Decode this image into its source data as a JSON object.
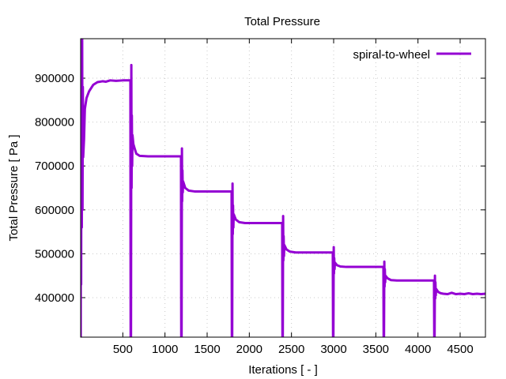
{
  "chart_data": {
    "type": "line",
    "title": "Total Pressure",
    "xlabel": "Iterations [ - ]",
    "ylabel": "Total Pressure [ Pa ]",
    "xlim": [
      0,
      4800
    ],
    "ylim": [
      310000,
      990000
    ],
    "xticks": [
      500,
      1000,
      1500,
      2000,
      2500,
      3000,
      3500,
      4000,
      4500
    ],
    "xtick_labels": [
      "500",
      "1000",
      "1500",
      "2000",
      "2500",
      "3000",
      "3500",
      "4000",
      "4500"
    ],
    "yticks": [
      400000,
      500000,
      600000,
      700000,
      800000,
      900000
    ],
    "ytick_labels": [
      "400000",
      "500000",
      "600000",
      "700000",
      "800000",
      "900000"
    ],
    "grid": true,
    "legend_position": "top-right",
    "series": [
      {
        "name": "spiral-to-wheel",
        "color": "#9400d3",
        "points": [
          [
            1,
            310000
          ],
          [
            3,
            990000
          ],
          [
            6,
            430000
          ],
          [
            10,
            990000
          ],
          [
            14,
            560000
          ],
          [
            18,
            990000
          ],
          [
            22,
            600000
          ],
          [
            26,
            880000
          ],
          [
            30,
            720000
          ],
          [
            40,
            760000
          ],
          [
            50,
            830000
          ],
          [
            70,
            855000
          ],
          [
            100,
            870000
          ],
          [
            150,
            885000
          ],
          [
            200,
            891000
          ],
          [
            260,
            893000
          ],
          [
            300,
            892000
          ],
          [
            350,
            895000
          ],
          [
            420,
            894000
          ],
          [
            500,
            895000
          ],
          [
            590,
            895000
          ],
          [
            593,
            310000
          ],
          [
            597,
            310000
          ],
          [
            601,
            930000
          ],
          [
            604,
            650000
          ],
          [
            607,
            815000
          ],
          [
            611,
            700000
          ],
          [
            615,
            770000
          ],
          [
            625,
            750000
          ],
          [
            640,
            740000
          ],
          [
            660,
            728000
          ],
          [
            700,
            723000
          ],
          [
            800,
            722000
          ],
          [
            900,
            722000
          ],
          [
            1000,
            722000
          ],
          [
            1190,
            722000
          ],
          [
            1193,
            310000
          ],
          [
            1197,
            310000
          ],
          [
            1201,
            740000
          ],
          [
            1204,
            620000
          ],
          [
            1207,
            690000
          ],
          [
            1211,
            640000
          ],
          [
            1215,
            665000
          ],
          [
            1240,
            650000
          ],
          [
            1280,
            644000
          ],
          [
            1350,
            642000
          ],
          [
            1500,
            642000
          ],
          [
            1790,
            642000
          ],
          [
            1793,
            310000
          ],
          [
            1797,
            310000
          ],
          [
            1801,
            660000
          ],
          [
            1804,
            545000
          ],
          [
            1807,
            610000
          ],
          [
            1811,
            560000
          ],
          [
            1815,
            590000
          ],
          [
            1840,
            578000
          ],
          [
            1880,
            572000
          ],
          [
            1950,
            570000
          ],
          [
            2100,
            570000
          ],
          [
            2390,
            570000
          ],
          [
            2393,
            310000
          ],
          [
            2397,
            310000
          ],
          [
            2401,
            586000
          ],
          [
            2404,
            485000
          ],
          [
            2407,
            540000
          ],
          [
            2411,
            495000
          ],
          [
            2415,
            520000
          ],
          [
            2440,
            510000
          ],
          [
            2480,
            505000
          ],
          [
            2550,
            503000
          ],
          [
            2700,
            503000
          ],
          [
            2990,
            503000
          ],
          [
            2993,
            310000
          ],
          [
            2997,
            310000
          ],
          [
            3001,
            515000
          ],
          [
            3004,
            455000
          ],
          [
            3007,
            490000
          ],
          [
            3011,
            465000
          ],
          [
            3015,
            480000
          ],
          [
            3040,
            474000
          ],
          [
            3080,
            471000
          ],
          [
            3150,
            470000
          ],
          [
            3300,
            470000
          ],
          [
            3590,
            470000
          ],
          [
            3593,
            310000
          ],
          [
            3597,
            310000
          ],
          [
            3601,
            482000
          ],
          [
            3604,
            425000
          ],
          [
            3607,
            465000
          ],
          [
            3611,
            435000
          ],
          [
            3615,
            450000
          ],
          [
            3640,
            444000
          ],
          [
            3680,
            440000
          ],
          [
            3750,
            439000
          ],
          [
            3900,
            439000
          ],
          [
            4190,
            439000
          ],
          [
            4193,
            310000
          ],
          [
            4197,
            310000
          ],
          [
            4201,
            450000
          ],
          [
            4204,
            398000
          ],
          [
            4207,
            435000
          ],
          [
            4211,
            405000
          ],
          [
            4215,
            420000
          ],
          [
            4240,
            413000
          ],
          [
            4270,
            410000
          ],
          [
            4300,
            409000
          ],
          [
            4350,
            408000
          ],
          [
            4400,
            411000
          ],
          [
            4450,
            408000
          ],
          [
            4500,
            409000
          ],
          [
            4550,
            408000
          ],
          [
            4600,
            410000
          ],
          [
            4650,
            408000
          ],
          [
            4700,
            409000
          ],
          [
            4750,
            408000
          ],
          [
            4800,
            409000
          ]
        ]
      }
    ]
  }
}
